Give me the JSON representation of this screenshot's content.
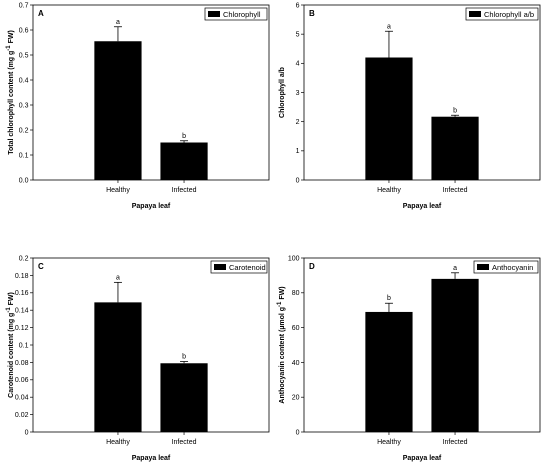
{
  "chart_data": [
    {
      "type": "bar",
      "panel": "A",
      "legend": "Chlorophyll",
      "legend_position": "top-right",
      "categories": [
        "Healthy",
        "Infected"
      ],
      "values": [
        0.555,
        0.15
      ],
      "errors": [
        0.058,
        0.007
      ],
      "significance": [
        "a",
        "b"
      ],
      "xlabel": "Papaya leaf",
      "ylabel": "Total chlorophyll content (mg g",
      "ylabel_sup": "-1",
      "ylabel_tail": " FW)",
      "ylim": [
        0,
        0.7
      ],
      "yticks": [
        0.0,
        0.1,
        0.2,
        0.3,
        0.4,
        0.5,
        0.6,
        0.7
      ],
      "ytick_labels": [
        "0.0",
        "0.1",
        "0.2",
        "0.3",
        "0.4",
        "0.5",
        "0.6",
        "0.7"
      ],
      "grid": false
    },
    {
      "type": "bar",
      "panel": "B",
      "legend": "Chlorophyll a/b",
      "legend_position": "top-right",
      "categories": [
        "Healthy",
        "Infected"
      ],
      "values": [
        4.2,
        2.17
      ],
      "errors": [
        0.9,
        0.05
      ],
      "significance": [
        "a",
        "b"
      ],
      "xlabel": "Papaya leaf",
      "ylabel": "Chlorophyll a/b",
      "ylabel_sup": "",
      "ylabel_tail": "",
      "ylim": [
        0,
        6
      ],
      "yticks": [
        0,
        1,
        2,
        3,
        4,
        5,
        6
      ],
      "ytick_labels": [
        "0",
        "1",
        "2",
        "3",
        "4",
        "5",
        "6"
      ],
      "grid": false
    },
    {
      "type": "bar",
      "panel": "C",
      "legend": "Carotenoid",
      "legend_position": "top-right",
      "categories": [
        "Healthy",
        "Infected"
      ],
      "values": [
        0.149,
        0.079
      ],
      "errors": [
        0.023,
        0.002
      ],
      "significance": [
        "a",
        "b"
      ],
      "xlabel": "Papaya leaf",
      "ylabel": "Carotenoid content (mg g",
      "ylabel_sup": "-1",
      "ylabel_tail": " FW)",
      "ylim": [
        0,
        0.2
      ],
      "yticks": [
        0,
        0.02,
        0.04,
        0.06,
        0.08,
        0.1,
        0.12,
        0.14,
        0.16,
        0.18,
        0.2
      ],
      "ytick_labels": [
        "0",
        "0.02",
        "0.04",
        "0.06",
        "0.08",
        "0.1",
        "0.12",
        "0.14",
        "0.16",
        "0.18",
        "0.2"
      ],
      "grid": false
    },
    {
      "type": "bar",
      "panel": "D",
      "legend": "Anthocyanin",
      "legend_position": "top-right",
      "categories": [
        "Healthy",
        "Infected"
      ],
      "values": [
        69,
        88
      ],
      "errors": [
        5,
        3.5
      ],
      "significance": [
        "b",
        "a"
      ],
      "xlabel": "Papaya leaf",
      "ylabel": "Anthocyanin content (µmol g",
      "ylabel_sup": "-1",
      "ylabel_tail": " FW)",
      "ylim": [
        0,
        100
      ],
      "yticks": [
        0,
        20,
        40,
        60,
        80,
        100
      ],
      "ytick_labels": [
        "0",
        "20",
        "40",
        "60",
        "80",
        "100"
      ],
      "grid": false
    }
  ]
}
